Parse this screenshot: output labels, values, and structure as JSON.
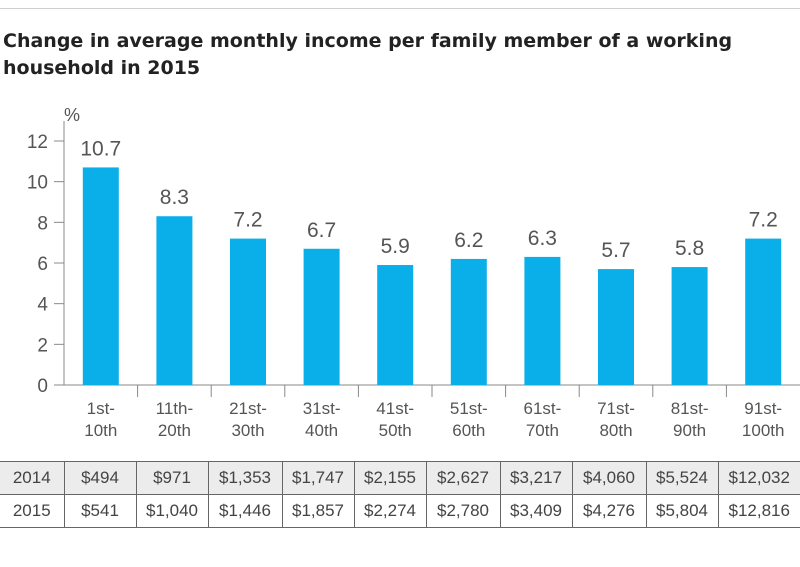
{
  "title": "Change in average monthly income per family member of a working household in 2015",
  "chart_data": {
    "type": "bar",
    "ylabel": "%",
    "ylim": [
      0,
      12
    ],
    "yticks": [
      0,
      2,
      4,
      6,
      8,
      10,
      12
    ],
    "categories": [
      [
        "1st-",
        "10th"
      ],
      [
        "11th-",
        "20th"
      ],
      [
        "21st-",
        "30th"
      ],
      [
        "31st-",
        "40th"
      ],
      [
        "41st-",
        "50th"
      ],
      [
        "51st-",
        "60th"
      ],
      [
        "61st-",
        "70th"
      ],
      [
        "71st-",
        "80th"
      ],
      [
        "81st-",
        "90th"
      ],
      [
        "91st-",
        "100th"
      ]
    ],
    "values": [
      10.7,
      8.3,
      7.2,
      6.7,
      5.9,
      6.2,
      6.3,
      5.7,
      5.8,
      7.2
    ],
    "value_labels": [
      "10.7",
      "8.3",
      "7.2",
      "6.7",
      "5.9",
      "6.2",
      "6.3",
      "5.7",
      "5.8",
      "7.2"
    ],
    "bar_color": "#0aaee9",
    "grid": false
  },
  "table": {
    "rows": [
      {
        "year": "2014",
        "values": [
          "$494",
          "$971",
          "$1,353",
          "$1,747",
          "$2,155",
          "$2,627",
          "$3,217",
          "$4,060",
          "$5,524",
          "$12,032"
        ]
      },
      {
        "year": "2015",
        "values": [
          "$541",
          "$1,040",
          "$1,446",
          "$1,857",
          "$2,274",
          "$2,780",
          "$3,409",
          "$4,276",
          "$5,804",
          "$12,816"
        ]
      }
    ]
  }
}
